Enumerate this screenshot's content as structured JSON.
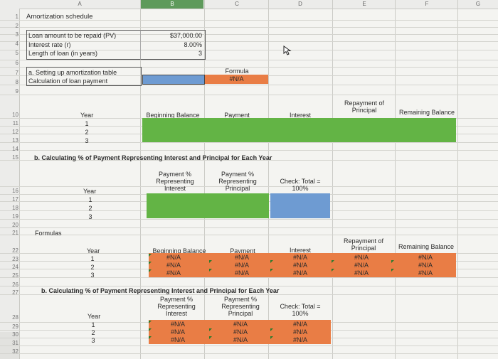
{
  "columns": [
    "A",
    "B",
    "C",
    "D",
    "E",
    "F",
    "G"
  ],
  "rows": [
    "1",
    "2",
    "3",
    "4",
    "5",
    "6",
    "7",
    "8",
    "9",
    "10",
    "11",
    "12",
    "13",
    "14",
    "15",
    "16",
    "17",
    "18",
    "19",
    "20",
    "21",
    "22",
    "23",
    "24",
    "25",
    "26",
    "27",
    "28",
    "29",
    "30",
    "31",
    "32"
  ],
  "title": "Amortization schedule",
  "inputs": {
    "loan_label": "Loan amount to be repaid (PV)",
    "loan_value": "$37,000.00",
    "rate_label": "Interest rate (r)",
    "rate_value": "8.00%",
    "length_label": "Length of loan (in years)",
    "length_value": "3"
  },
  "section_a": {
    "title": "a. Setting up amortization table",
    "calc_label": "Calculation of loan payment",
    "formula_label": "Formula",
    "formula_value": "#N/A"
  },
  "table1": {
    "headers": {
      "year": "Year",
      "beginning": "Beginning Balance",
      "payment": "Payment",
      "interest": "Interest",
      "repayment": "Repayment of Principal",
      "remaining": "Remaining Balance"
    },
    "years": [
      "1",
      "2",
      "3"
    ]
  },
  "section_b": {
    "title": "b. Calculating % of Payment Representing Interest and Principal for Each Year",
    "headers": {
      "pct_interest": "Payment % Representing Interest",
      "pct_principal": "Payment % Representing Principal",
      "check": "Check: Total = 100%",
      "year": "Year"
    },
    "years": [
      "1",
      "2",
      "3"
    ]
  },
  "formulas": {
    "label": "Formulas",
    "headers": {
      "year": "Year",
      "beginning": "Beginning Balance",
      "payment": "Payment",
      "interest": "Interest",
      "repayment": "Repayment of Principal",
      "remaining": "Remaining Balance"
    },
    "years": [
      "1",
      "2",
      "3"
    ],
    "na": "#N/A"
  },
  "formulas_b": {
    "title": "b. Calculating % of Payment Representing Interest and Principal for Each Year",
    "headers": {
      "year": "Year",
      "pct_interest": "Payment % Representing Interest",
      "pct_principal": "Payment % Representing Principal",
      "check": "Check: Total = 100%"
    },
    "years": [
      "1",
      "2",
      "3"
    ],
    "na": "#N/A"
  },
  "colors": {
    "green": "#63b445",
    "blue": "#6e9bd2",
    "orange": "#e97d45"
  }
}
